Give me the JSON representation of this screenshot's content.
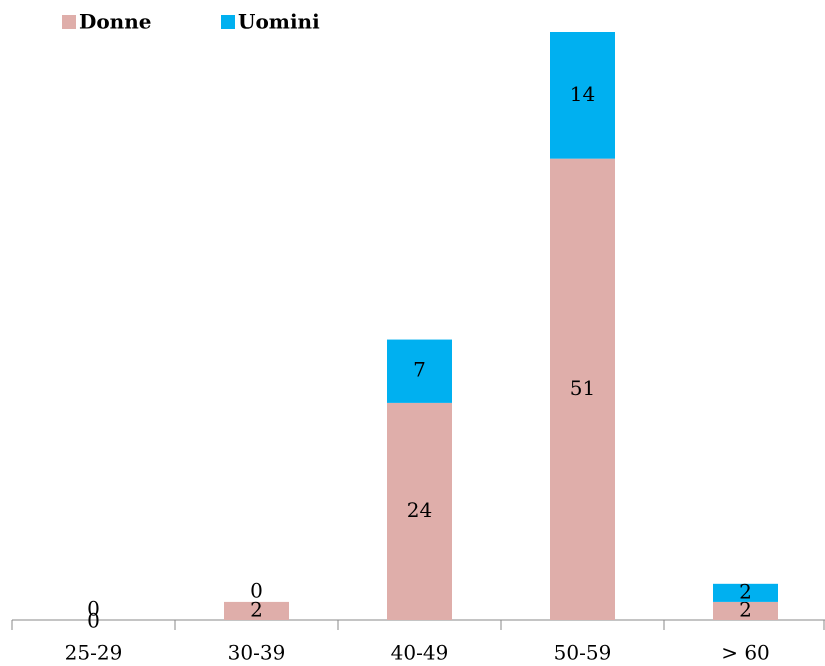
{
  "chart_data": {
    "type": "stacked_bar",
    "categories": [
      "25-29",
      "30-39",
      "40-49",
      "50-59",
      "> 60"
    ],
    "series": [
      {
        "name": "Donne",
        "color": "#dfaeaa",
        "values": [
          0,
          2,
          24,
          51,
          2
        ]
      },
      {
        "name": "Uomini",
        "color": "#00b0f0",
        "values": [
          0,
          0,
          7,
          14,
          2
        ]
      }
    ],
    "ylim": [
      0,
      65
    ],
    "legend": "top-left"
  }
}
